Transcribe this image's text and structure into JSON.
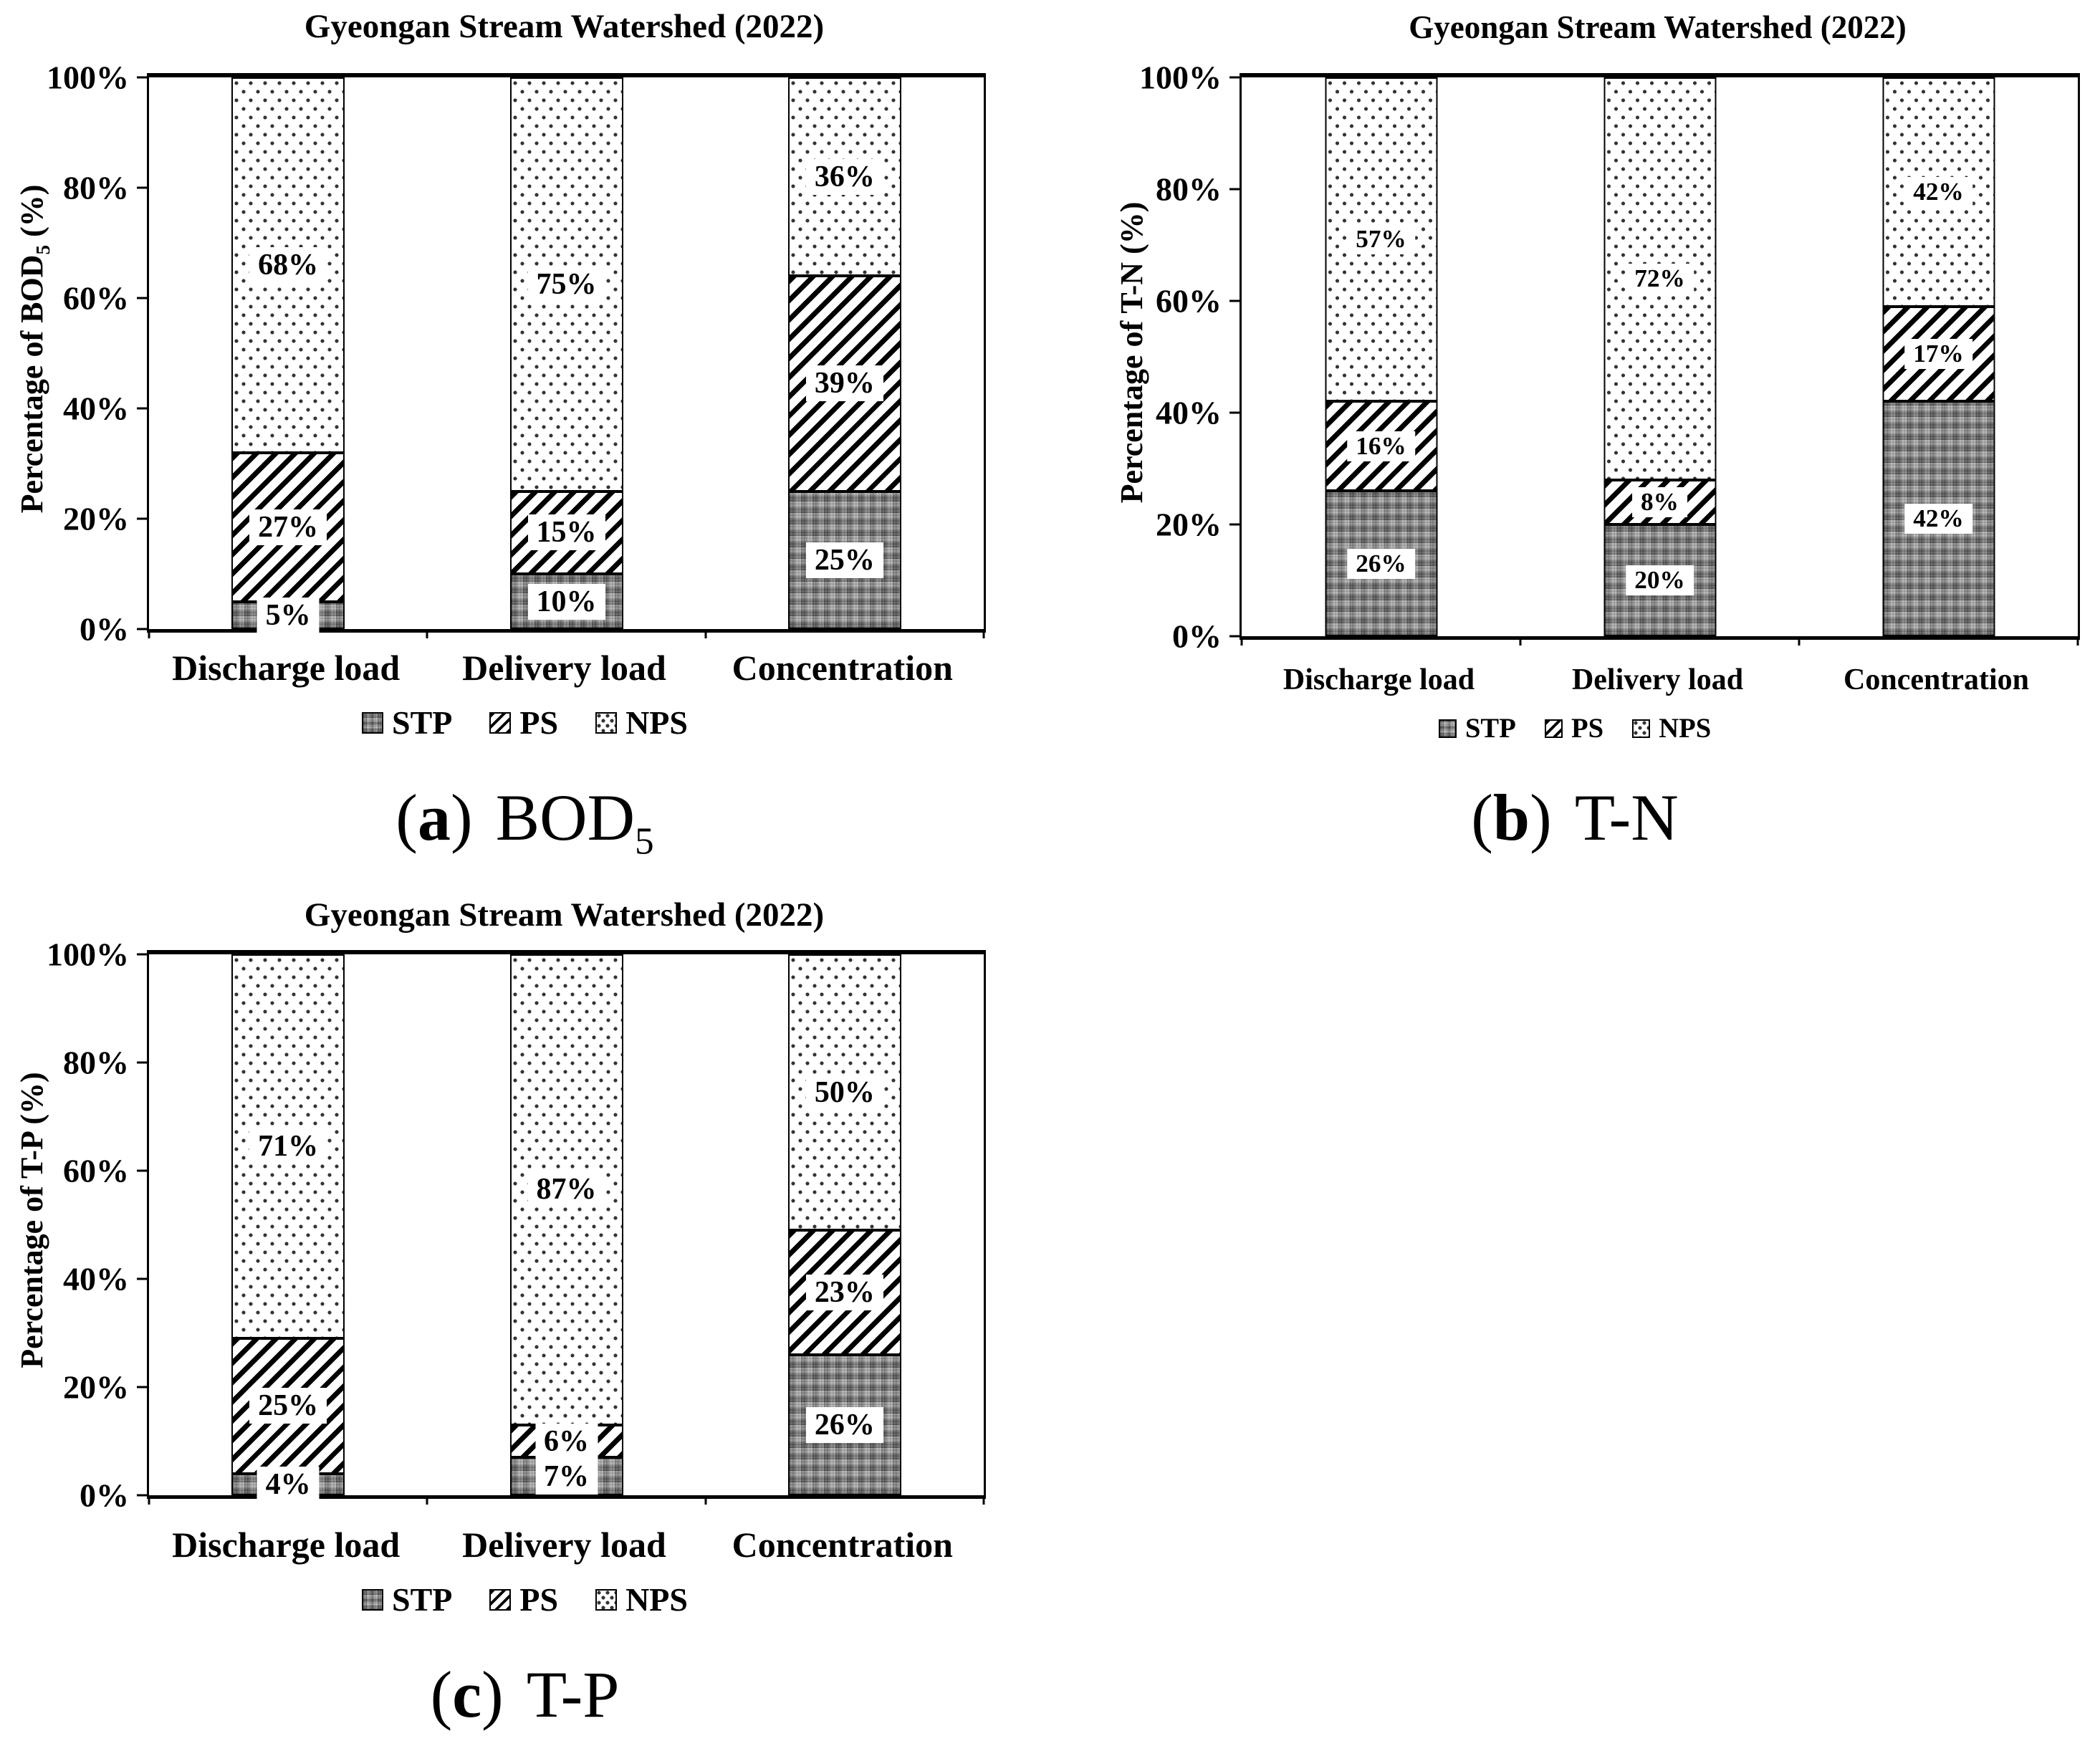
{
  "page": {
    "background": "#ffffff"
  },
  "colors": {
    "ink": "#000000",
    "stp_gray": "#9e9e9e",
    "label_bg": "#ffffff",
    "bar_border": "#000000"
  },
  "patterns": {
    "STP": "gray-plaid-weave",
    "PS": "black-diagonal-hatch",
    "NPS": "dot-grid-on-white"
  },
  "chart_data": [
    {
      "id": "a",
      "type": "bar",
      "stacked": true,
      "title": "Gyeongan Stream Watershed (2022)",
      "ylabel_pre": "Percentage of BOD",
      "ylabel_sub": "5",
      "ylabel_post": " (%)",
      "ylim": [
        0,
        100
      ],
      "y_ticks": [
        "0%",
        "20%",
        "40%",
        "60%",
        "80%",
        "100%"
      ],
      "categories": [
        "Discharge load",
        "Delivery load",
        "Concentration"
      ],
      "series": [
        {
          "name": "STP",
          "values": [
            5,
            10,
            25
          ]
        },
        {
          "name": "PS",
          "values": [
            27,
            15,
            39
          ]
        },
        {
          "name": "NPS",
          "values": [
            68,
            75,
            36
          ]
        }
      ],
      "legend": [
        "STP",
        "PS",
        "NPS"
      ],
      "legend_position": "bottom",
      "grid": "off",
      "caption_open": "(",
      "caption_letter": "a",
      "caption_close": ")",
      "caption_name": "BOD",
      "caption_sub": "5"
    },
    {
      "id": "b",
      "type": "bar",
      "stacked": true,
      "title": "Gyeongan Stream Watershed (2022)",
      "ylabel_pre": "Percentage of T-N (%)",
      "ylabel_sub": "",
      "ylabel_post": "",
      "ylim": [
        0,
        100
      ],
      "y_ticks": [
        "0%",
        "20%",
        "40%",
        "60%",
        "80%",
        "100%"
      ],
      "categories": [
        "Discharge load",
        "Delivery load",
        "Concentration"
      ],
      "series": [
        {
          "name": "STP",
          "values": [
            26,
            20,
            42
          ]
        },
        {
          "name": "PS",
          "values": [
            16,
            8,
            17
          ]
        },
        {
          "name": "NPS",
          "values": [
            57,
            72,
            42
          ]
        }
      ],
      "legend": [
        "STP",
        "PS",
        "NPS"
      ],
      "legend_position": "bottom",
      "grid": "off",
      "caption_open": "(",
      "caption_letter": "b",
      "caption_close": ")",
      "caption_name": "T-N",
      "caption_sub": ""
    },
    {
      "id": "c",
      "type": "bar",
      "stacked": true,
      "title": "Gyeongan Stream Watershed (2022)",
      "ylabel_pre": "Percentage of T-P (%)",
      "ylabel_sub": "",
      "ylabel_post": "",
      "ylim": [
        0,
        100
      ],
      "y_ticks": [
        "0%",
        "20%",
        "40%",
        "60%",
        "80%",
        "100%"
      ],
      "categories": [
        "Discharge load",
        "Delivery load",
        "Concentration"
      ],
      "series": [
        {
          "name": "STP",
          "values": [
            4,
            7,
            26
          ]
        },
        {
          "name": "PS",
          "values": [
            25,
            6,
            23
          ]
        },
        {
          "name": "NPS",
          "values": [
            71,
            87,
            50
          ]
        }
      ],
      "legend": [
        "STP",
        "PS",
        "NPS"
      ],
      "legend_position": "bottom",
      "grid": "off",
      "caption_open": "(",
      "caption_letter": "c",
      "caption_close": ")",
      "caption_name": "T-P",
      "caption_sub": ""
    }
  ]
}
